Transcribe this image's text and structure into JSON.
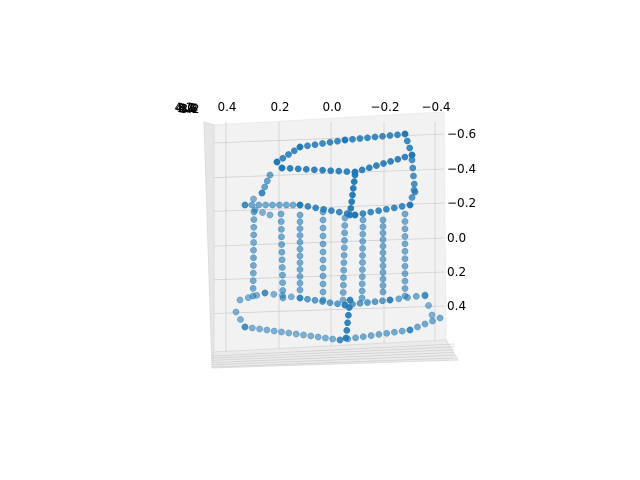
{
  "chart_data": {
    "type": "scatter",
    "projection": "3d",
    "title": "",
    "xlabel": "",
    "ylabel": "",
    "zlabel": "",
    "grid": true,
    "marker_color": "#1f77b4",
    "pane_color": "#f2f2f2",
    "x_ticks": [
      "0.4",
      "0.2",
      "0.0",
      "−0.2",
      "−0.4"
    ],
    "z_ticks": [
      "−0.6",
      "−0.4",
      "−0.2",
      "0.0",
      "0.2",
      "0.4"
    ],
    "y_ticks_overlapped": [
      "3.2",
      "3.4",
      "3.6",
      "3.8",
      "4.0",
      "4.2"
    ],
    "x_range": [
      -0.45,
      0.45
    ],
    "z_range": [
      -0.62,
      0.62
    ],
    "points_note": "point cloud of a table-like object: top rim loop, middle rim loop, vertical legs, base loop"
  }
}
